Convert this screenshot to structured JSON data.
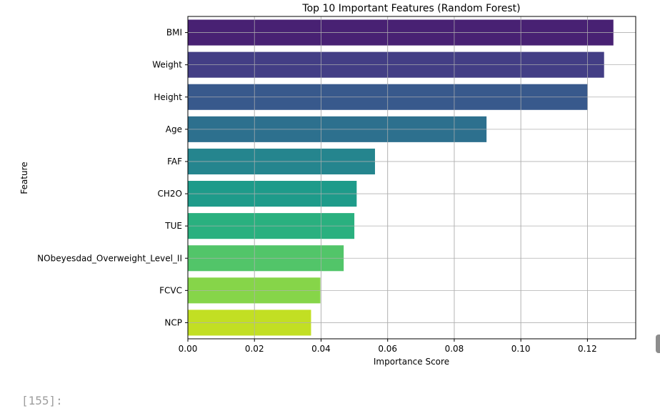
{
  "cell": {
    "prompt_label": "[155]:"
  },
  "chart_data": {
    "type": "bar",
    "orientation": "horizontal",
    "title": "Top 10 Important Features (Random Forest)",
    "xlabel": "Importance Score",
    "ylabel": "Feature",
    "categories": [
      "BMI",
      "Weight",
      "Height",
      "Age",
      "FAF",
      "CH2O",
      "TUE",
      "NObeyesdad_Overweight_Level_II",
      "FCVC",
      "NCP"
    ],
    "values": [
      0.1278,
      0.125,
      0.1201,
      0.0897,
      0.0562,
      0.0507,
      0.05,
      0.0468,
      0.0398,
      0.037
    ],
    "colors": [
      "#482173",
      "#433e85",
      "#38598c",
      "#2d708e",
      "#25858e",
      "#1e9b8a",
      "#2ab07f",
      "#52c569",
      "#86d549",
      "#c2df23"
    ],
    "xlim": [
      0,
      0.1345
    ],
    "xticks": [
      0,
      0.02,
      0.04,
      0.06,
      0.08,
      0.1,
      0.12
    ],
    "xtick_labels": [
      "0.00",
      "0.02",
      "0.04",
      "0.06",
      "0.08",
      "0.10",
      "0.12"
    ],
    "grid": true
  }
}
